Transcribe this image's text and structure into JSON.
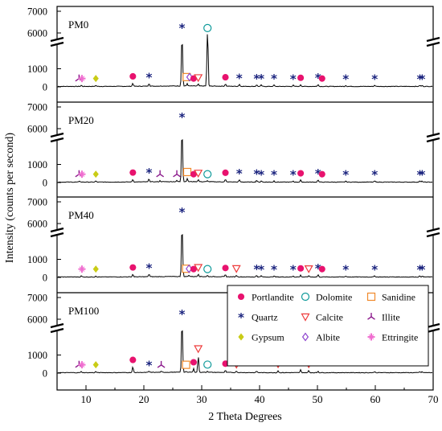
{
  "chart_data": {
    "type": "line",
    "xlabel": "2 Theta Degrees",
    "ylabel": "Intensity (counts per second)",
    "xlim": [
      5,
      70
    ],
    "x_ticks": [
      10,
      20,
      30,
      40,
      50,
      60,
      70
    ],
    "y_ticks": [
      0,
      1000,
      6000,
      7000
    ],
    "y_axis": "broken between 2000 and 5000",
    "grid": false,
    "legend_position": "inside lower-right",
    "marker_colors": {
      "Portlandite": "#e8126e",
      "Quartz": "#1a237e",
      "Gypsum": "#c9cc16",
      "Dolomite": "#0f9a9a",
      "Calcite": "#ee3b3b",
      "Albite": "#8e44cf",
      "Sanidine": "#f0892a",
      "Illite": "#8c1a8c",
      "Ettringite": "#f06fd0"
    },
    "legend": [
      {
        "label": "Portlandite",
        "marker": "circle-filled"
      },
      {
        "label": "Dolomite",
        "marker": "circle-open"
      },
      {
        "label": "Sanidine",
        "marker": "square-open"
      },
      {
        "label": "Quartz",
        "marker": "asterisk"
      },
      {
        "label": "Calcite",
        "marker": "triangle-down-open"
      },
      {
        "label": "Illite",
        "marker": "tri-star"
      },
      {
        "label": "Gypsum",
        "marker": "diamond-filled"
      },
      {
        "label": "Albite",
        "marker": "diamond-open"
      },
      {
        "label": "Ettringite",
        "marker": "plus-star"
      }
    ],
    "panels": [
      {
        "name": "PM0",
        "peaks": [
          {
            "x": 9.2,
            "y": 60
          },
          {
            "x": 11.7,
            "y": 60
          },
          {
            "x": 18.1,
            "y": 180
          },
          {
            "x": 20.9,
            "y": 160
          },
          {
            "x": 26.6,
            "y": 6000
          },
          {
            "x": 27.5,
            "y": 140
          },
          {
            "x": 29.4,
            "y": 110
          },
          {
            "x": 31.0,
            "y": 5700
          },
          {
            "x": 34.1,
            "y": 130
          },
          {
            "x": 36.5,
            "y": 110
          },
          {
            "x": 39.5,
            "y": 90
          },
          {
            "x": 40.3,
            "y": 80
          },
          {
            "x": 42.5,
            "y": 80
          },
          {
            "x": 45.8,
            "y": 70
          },
          {
            "x": 47.1,
            "y": 100
          },
          {
            "x": 50.1,
            "y": 120
          },
          {
            "x": 54.9,
            "y": 60
          },
          {
            "x": 59.9,
            "y": 70
          },
          {
            "x": 67.7,
            "y": 60
          },
          {
            "x": 68.1,
            "y": 50
          }
        ],
        "markers": [
          {
            "mineral": "Illite",
            "x": 8.8
          },
          {
            "mineral": "Ettringite",
            "x": 9.3
          },
          {
            "mineral": "Gypsum",
            "x": 11.7
          },
          {
            "mineral": "Portlandite",
            "x": 18.1
          },
          {
            "mineral": "Quartz",
            "x": 20.9
          },
          {
            "mineral": "Quartz",
            "x": 26.6
          },
          {
            "mineral": "Sanidine",
            "x": 27.4
          },
          {
            "mineral": "Albite",
            "x": 27.9
          },
          {
            "mineral": "Portlandite",
            "x": 28.6
          },
          {
            "mineral": "Calcite",
            "x": 29.4
          },
          {
            "mineral": "Dolomite",
            "x": 31.0
          },
          {
            "mineral": "Portlandite",
            "x": 34.1
          },
          {
            "mineral": "Quartz",
            "x": 36.5
          },
          {
            "mineral": "Quartz",
            "x": 39.5
          },
          {
            "mineral": "Quartz",
            "x": 40.3
          },
          {
            "mineral": "Quartz",
            "x": 42.5
          },
          {
            "mineral": "Quartz",
            "x": 45.8
          },
          {
            "mineral": "Portlandite",
            "x": 47.1
          },
          {
            "mineral": "Quartz",
            "x": 50.1
          },
          {
            "mineral": "Portlandite",
            "x": 50.8
          },
          {
            "mineral": "Quartz",
            "x": 54.9
          },
          {
            "mineral": "Quartz",
            "x": 59.9
          },
          {
            "mineral": "Quartz",
            "x": 67.7
          },
          {
            "mineral": "Quartz",
            "x": 68.1
          }
        ]
      },
      {
        "name": "PM20",
        "peaks": [
          {
            "x": 8.9,
            "y": 60
          },
          {
            "x": 11.7,
            "y": 60
          },
          {
            "x": 18.1,
            "y": 150
          },
          {
            "x": 20.9,
            "y": 170
          },
          {
            "x": 22.8,
            "y": 60
          },
          {
            "x": 25.7,
            "y": 60
          },
          {
            "x": 26.6,
            "y": 6300
          },
          {
            "x": 27.5,
            "y": 180
          },
          {
            "x": 29.4,
            "y": 120
          },
          {
            "x": 31.0,
            "y": 60
          },
          {
            "x": 34.1,
            "y": 140
          },
          {
            "x": 36.5,
            "y": 120
          },
          {
            "x": 39.5,
            "y": 100
          },
          {
            "x": 40.3,
            "y": 70
          },
          {
            "x": 42.5,
            "y": 70
          },
          {
            "x": 45.8,
            "y": 60
          },
          {
            "x": 47.1,
            "y": 110
          },
          {
            "x": 50.1,
            "y": 130
          },
          {
            "x": 54.9,
            "y": 60
          },
          {
            "x": 59.9,
            "y": 70
          },
          {
            "x": 67.7,
            "y": 60
          },
          {
            "x": 68.1,
            "y": 50
          }
        ],
        "markers": [
          {
            "mineral": "Illite",
            "x": 8.8
          },
          {
            "mineral": "Ettringite",
            "x": 9.3
          },
          {
            "mineral": "Gypsum",
            "x": 11.7
          },
          {
            "mineral": "Portlandite",
            "x": 18.1
          },
          {
            "mineral": "Quartz",
            "x": 20.9
          },
          {
            "mineral": "Illite",
            "x": 22.8
          },
          {
            "mineral": "Illite",
            "x": 25.7
          },
          {
            "mineral": "Quartz",
            "x": 26.6
          },
          {
            "mineral": "Sanidine",
            "x": 27.5
          },
          {
            "mineral": "Portlandite",
            "x": 28.6
          },
          {
            "mineral": "Calcite",
            "x": 29.4
          },
          {
            "mineral": "Dolomite",
            "x": 31.0
          },
          {
            "mineral": "Portlandite",
            "x": 34.1
          },
          {
            "mineral": "Quartz",
            "x": 36.5
          },
          {
            "mineral": "Quartz",
            "x": 39.5
          },
          {
            "mineral": "Quartz",
            "x": 40.3
          },
          {
            "mineral": "Quartz",
            "x": 42.5
          },
          {
            "mineral": "Quartz",
            "x": 45.8
          },
          {
            "mineral": "Portlandite",
            "x": 47.1
          },
          {
            "mineral": "Quartz",
            "x": 50.1
          },
          {
            "mineral": "Portlandite",
            "x": 50.8
          },
          {
            "mineral": "Quartz",
            "x": 54.9
          },
          {
            "mineral": "Quartz",
            "x": 59.9
          },
          {
            "mineral": "Quartz",
            "x": 67.7
          },
          {
            "mineral": "Quartz",
            "x": 68.1
          }
        ]
      },
      {
        "name": "PM40",
        "peaks": [
          {
            "x": 9.2,
            "y": 60
          },
          {
            "x": 11.7,
            "y": 60
          },
          {
            "x": 18.1,
            "y": 150
          },
          {
            "x": 20.9,
            "y": 160
          },
          {
            "x": 26.6,
            "y": 6300
          },
          {
            "x": 27.8,
            "y": 80
          },
          {
            "x": 29.4,
            "y": 150
          },
          {
            "x": 31.0,
            "y": 60
          },
          {
            "x": 34.1,
            "y": 120
          },
          {
            "x": 36.0,
            "y": 90
          },
          {
            "x": 39.5,
            "y": 90
          },
          {
            "x": 40.3,
            "y": 70
          },
          {
            "x": 42.5,
            "y": 70
          },
          {
            "x": 45.8,
            "y": 60
          },
          {
            "x": 47.1,
            "y": 100
          },
          {
            "x": 48.5,
            "y": 80
          },
          {
            "x": 50.1,
            "y": 130
          },
          {
            "x": 54.9,
            "y": 60
          },
          {
            "x": 59.9,
            "y": 70
          },
          {
            "x": 67.7,
            "y": 60
          },
          {
            "x": 68.1,
            "y": 50
          }
        ],
        "markers": [
          {
            "mineral": "Ettringite",
            "x": 9.3
          },
          {
            "mineral": "Gypsum",
            "x": 11.7
          },
          {
            "mineral": "Portlandite",
            "x": 18.1
          },
          {
            "mineral": "Quartz",
            "x": 20.9
          },
          {
            "mineral": "Quartz",
            "x": 26.6
          },
          {
            "mineral": "Sanidine",
            "x": 27.3
          },
          {
            "mineral": "Albite",
            "x": 27.8
          },
          {
            "mineral": "Portlandite",
            "x": 28.6
          },
          {
            "mineral": "Calcite",
            "x": 29.4
          },
          {
            "mineral": "Dolomite",
            "x": 31.0
          },
          {
            "mineral": "Portlandite",
            "x": 34.1
          },
          {
            "mineral": "Calcite",
            "x": 36.0
          },
          {
            "mineral": "Quartz",
            "x": 39.5
          },
          {
            "mineral": "Quartz",
            "x": 40.3
          },
          {
            "mineral": "Quartz",
            "x": 42.5
          },
          {
            "mineral": "Quartz",
            "x": 45.8
          },
          {
            "mineral": "Portlandite",
            "x": 47.1
          },
          {
            "mineral": "Calcite",
            "x": 48.5
          },
          {
            "mineral": "Quartz",
            "x": 50.1
          },
          {
            "mineral": "Portlandite",
            "x": 50.8
          },
          {
            "mineral": "Quartz",
            "x": 54.9
          },
          {
            "mineral": "Quartz",
            "x": 59.9
          },
          {
            "mineral": "Quartz",
            "x": 67.7
          },
          {
            "mineral": "Quartz",
            "x": 68.1
          }
        ]
      },
      {
        "name": "PM100",
        "peaks": [
          {
            "x": 9.2,
            "y": 60
          },
          {
            "x": 11.7,
            "y": 60
          },
          {
            "x": 18.1,
            "y": 330
          },
          {
            "x": 20.9,
            "y": 70
          },
          {
            "x": 23.0,
            "y": 50
          },
          {
            "x": 26.6,
            "y": 6000
          },
          {
            "x": 27.3,
            "y": 60
          },
          {
            "x": 28.6,
            "y": 200
          },
          {
            "x": 29.4,
            "y": 950
          },
          {
            "x": 31.0,
            "y": 70
          },
          {
            "x": 34.1,
            "y": 120
          },
          {
            "x": 36.0,
            "y": 90
          },
          {
            "x": 39.5,
            "y": 90
          },
          {
            "x": 43.2,
            "y": 110
          },
          {
            "x": 47.1,
            "y": 160
          },
          {
            "x": 48.5,
            "y": 110
          },
          {
            "x": 50.1,
            "y": 80
          },
          {
            "x": 59.9,
            "y": 60
          },
          {
            "x": 67.7,
            "y": 60
          },
          {
            "x": 68.1,
            "y": 50
          }
        ],
        "markers": [
          {
            "mineral": "Illite",
            "x": 8.8
          },
          {
            "mineral": "Ettringite",
            "x": 9.3
          },
          {
            "mineral": "Gypsum",
            "x": 11.7
          },
          {
            "mineral": "Portlandite",
            "x": 18.1
          },
          {
            "mineral": "Quartz",
            "x": 20.9
          },
          {
            "mineral": "Illite",
            "x": 23.0
          },
          {
            "mineral": "Quartz",
            "x": 26.6
          },
          {
            "mineral": "Sanidine",
            "x": 27.3
          },
          {
            "mineral": "Portlandite",
            "x": 28.6
          },
          {
            "mineral": "Calcite",
            "x": 29.4
          },
          {
            "mineral": "Dolomite",
            "x": 31.0
          },
          {
            "mineral": "Portlandite",
            "x": 34.1
          },
          {
            "mineral": "Calcite",
            "x": 36.0
          },
          {
            "mineral": "Quartz",
            "x": 36.5
          },
          {
            "mineral": "Quartz",
            "x": 39.5
          },
          {
            "mineral": "Quartz",
            "x": 40.3
          },
          {
            "mineral": "Calcite",
            "x": 43.2
          },
          {
            "mineral": "Portlandite",
            "x": 47.1
          },
          {
            "mineral": "Calcite",
            "x": 48.5
          },
          {
            "mineral": "Quartz",
            "x": 50.1
          },
          {
            "mineral": "Quartz",
            "x": 59.9
          },
          {
            "mineral": "Quartz",
            "x": 67.7
          },
          {
            "mineral": "Quartz",
            "x": 68.1
          }
        ]
      }
    ]
  }
}
